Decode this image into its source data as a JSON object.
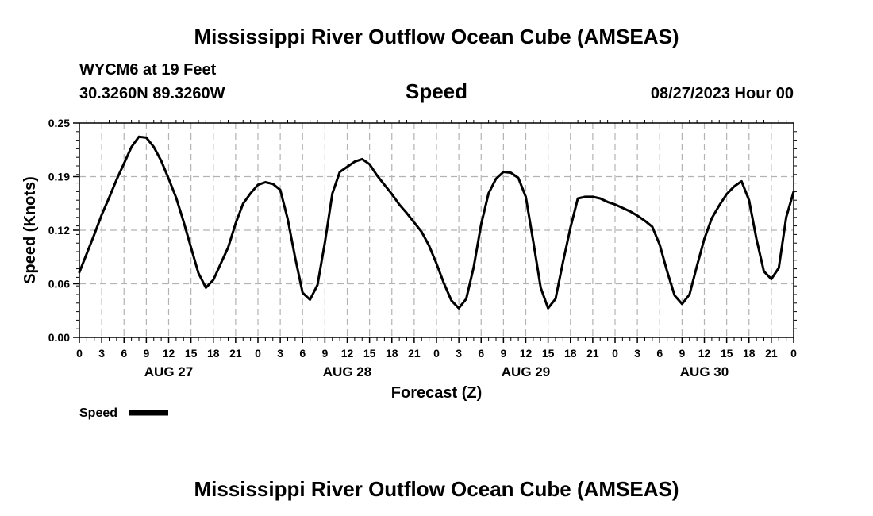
{
  "chart_data": {
    "type": "line",
    "title": "Mississippi River Outflow Ocean Cube (AMSEAS)",
    "footer_title": "Mississippi River Outflow Ocean Cube (AMSEAS)",
    "station": "WYCM6 at 19 Feet",
    "coordinates": "30.3260N  89.3260W",
    "subtitle": "Speed",
    "date_label": "08/27/2023 Hour 00",
    "xlabel": "Forecast (Z)",
    "ylabel": "Speed (Knots)",
    "ylim": [
      0,
      0.25
    ],
    "xlim": [
      0,
      96
    ],
    "yticks": [
      {
        "value": 0,
        "label": "0.00"
      },
      {
        "value": 0.0625,
        "label": "0.06"
      },
      {
        "value": 0.125,
        "label": "0.12"
      },
      {
        "value": 0.1875,
        "label": "0.19"
      },
      {
        "value": 0.25,
        "label": "0.25"
      }
    ],
    "x_tick_labels": [
      "0",
      "3",
      "6",
      "9",
      "12",
      "15",
      "18",
      "21",
      "0",
      "3",
      "6",
      "9",
      "12",
      "15",
      "18",
      "21",
      "0",
      "3",
      "6",
      "9",
      "12",
      "15",
      "18",
      "21",
      "0",
      "3",
      "6",
      "9",
      "12",
      "15",
      "18",
      "21",
      "0"
    ],
    "day_labels": [
      {
        "label": "AUG 27",
        "hour": 12
      },
      {
        "label": "AUG 28",
        "hour": 36
      },
      {
        "label": "AUG 29",
        "hour": 60
      },
      {
        "label": "AUG 30",
        "hour": 84
      }
    ],
    "grid": true,
    "legend_position": "bottom-left",
    "series": [
      {
        "name": "Speed",
        "color": "#000000",
        "x": [
          0,
          1,
          2,
          3,
          4,
          5,
          6,
          7,
          8,
          9,
          10,
          11,
          12,
          13,
          14,
          15,
          16,
          17,
          18,
          19,
          20,
          21,
          22,
          23,
          24,
          25,
          26,
          27,
          28,
          29,
          30,
          31,
          32,
          33,
          34,
          35,
          36,
          37,
          38,
          39,
          40,
          41,
          42,
          43,
          44,
          45,
          46,
          47,
          48,
          49,
          50,
          51,
          52,
          53,
          54,
          55,
          56,
          57,
          58,
          59,
          60,
          61,
          62,
          63,
          64,
          65,
          66,
          67,
          68,
          69,
          70,
          71,
          72,
          73,
          74,
          75,
          76,
          77,
          78,
          79,
          80,
          81,
          82,
          83,
          84,
          85,
          86,
          87,
          88,
          89,
          90,
          91,
          92,
          93,
          94,
          95,
          96
        ],
        "y": [
          0.076,
          0.098,
          0.12,
          0.143,
          0.163,
          0.184,
          0.203,
          0.222,
          0.234,
          0.233,
          0.222,
          0.206,
          0.185,
          0.163,
          0.135,
          0.105,
          0.075,
          0.058,
          0.067,
          0.086,
          0.105,
          0.133,
          0.156,
          0.168,
          0.178,
          0.181,
          0.179,
          0.172,
          0.138,
          0.093,
          0.052,
          0.044,
          0.061,
          0.111,
          0.168,
          0.193,
          0.199,
          0.205,
          0.208,
          0.202,
          0.189,
          0.178,
          0.167,
          0.155,
          0.145,
          0.134,
          0.123,
          0.107,
          0.086,
          0.063,
          0.043,
          0.034,
          0.045,
          0.082,
          0.132,
          0.168,
          0.185,
          0.193,
          0.192,
          0.186,
          0.164,
          0.112,
          0.058,
          0.034,
          0.045,
          0.088,
          0.128,
          0.162,
          0.164,
          0.164,
          0.162,
          0.158,
          0.155,
          0.151,
          0.147,
          0.142,
          0.136,
          0.129,
          0.108,
          0.077,
          0.049,
          0.039,
          0.05,
          0.083,
          0.115,
          0.139,
          0.154,
          0.167,
          0.176,
          0.182,
          0.16,
          0.115,
          0.077,
          0.068,
          0.081,
          0.14,
          0.17
        ]
      }
    ]
  }
}
